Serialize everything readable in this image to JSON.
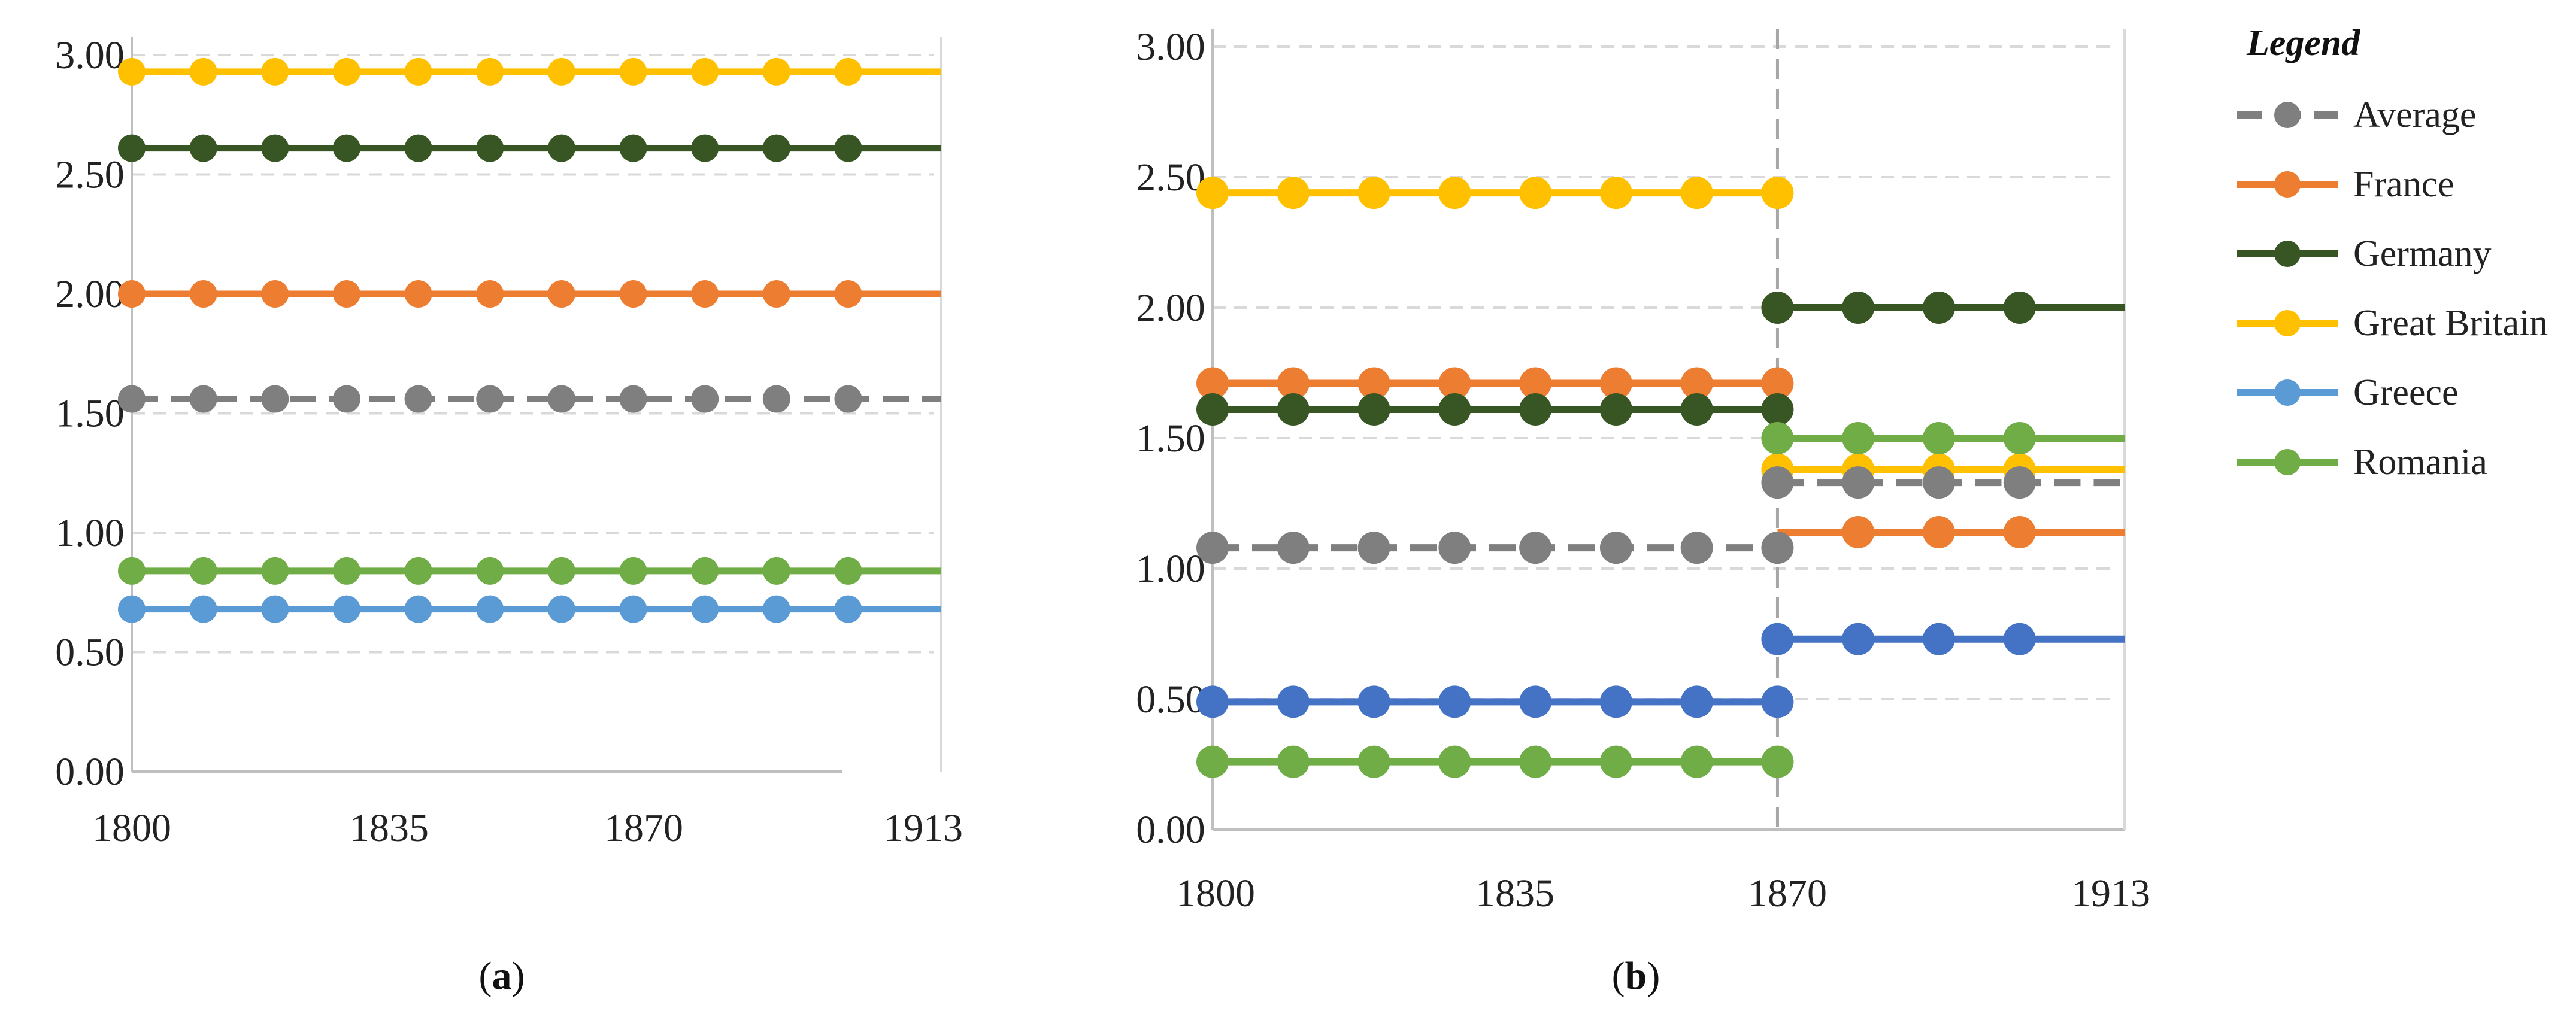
{
  "colors": {
    "Average": "#7f7f7f",
    "France": "#ed7d31",
    "Germany": "#375623",
    "Great Britain": "#ffc000",
    "Greece": "#5b9bd5",
    "Greece_b": "#4472c4",
    "Romania": "#70ad47",
    "grid": "#d9d9d9",
    "axis": "#bfbfbf"
  },
  "legend": {
    "title": "Legend",
    "items": [
      "Average",
      "France",
      "Germany",
      "Great Britain",
      "Greece",
      "Romania"
    ]
  },
  "chart_data": [
    {
      "type": "line",
      "panel": "a",
      "caption": {
        "open": "(",
        "letter": "a",
        "close": ")"
      },
      "xlim": [
        1800,
        1913
      ],
      "ylim": [
        0,
        3
      ],
      "x_ticks": [
        "1800",
        "1835",
        "1870",
        "1913"
      ],
      "x_tick_values": [
        1800,
        1835,
        1870,
        1913
      ],
      "y_ticks": [
        "0.00",
        "0.50",
        "1.00",
        "1.50",
        "2.00",
        "2.50",
        "3.00"
      ],
      "y_tick_values": [
        0,
        0.5,
        1,
        1.5,
        2,
        2.5,
        3
      ],
      "grid": "horizontal dashed",
      "marker_x": [
        1800,
        1810,
        1820,
        1830,
        1840,
        1850,
        1860,
        1870,
        1880,
        1890,
        1900
      ],
      "series": [
        {
          "name": "Great Britain",
          "segments": [
            {
              "x0": 1800,
              "x1": 1913,
              "value": 2.93
            }
          ]
        },
        {
          "name": "Germany",
          "segments": [
            {
              "x0": 1800,
              "x1": 1913,
              "value": 2.61
            }
          ]
        },
        {
          "name": "France",
          "segments": [
            {
              "x0": 1800,
              "x1": 1913,
              "value": 2.0
            }
          ]
        },
        {
          "name": "Average",
          "dashed": true,
          "segments": [
            {
              "x0": 1800,
              "x1": 1913,
              "value": 1.56
            }
          ]
        },
        {
          "name": "Romania",
          "segments": [
            {
              "x0": 1800,
              "x1": 1913,
              "value": 0.84
            }
          ]
        },
        {
          "name": "Greece",
          "segments": [
            {
              "x0": 1800,
              "x1": 1913,
              "value": 0.68
            }
          ]
        }
      ]
    },
    {
      "type": "line",
      "panel": "b",
      "caption": {
        "open": "(",
        "letter": "b",
        "close": ")"
      },
      "xlim": [
        1800,
        1913
      ],
      "ylim": [
        0,
        3
      ],
      "x_ticks": [
        "1800",
        "1835",
        "1870",
        "1913"
      ],
      "x_tick_values": [
        1800,
        1835,
        1870,
        1913
      ],
      "y_ticks": [
        "0.00",
        "0.50",
        "1.00",
        "1.50",
        "2.00",
        "2.50",
        "3.00"
      ],
      "y_tick_values": [
        0,
        0.5,
        1,
        1.5,
        2,
        2.5,
        3
      ],
      "grid": "horizontal dashed",
      "break_year": 1870,
      "series": [
        {
          "name": "Great Britain",
          "segments": [
            {
              "x0": 1800,
              "x1": 1870,
              "value": 2.44,
              "markers": [
                1800,
                1810,
                1820,
                1830,
                1840,
                1850,
                1860,
                1870
              ]
            },
            {
              "x0": 1870,
              "x1": 1913,
              "value": 1.38,
              "markers": [
                1870,
                1880,
                1890,
                1900
              ]
            }
          ]
        },
        {
          "name": "France",
          "segments": [
            {
              "x0": 1800,
              "x1": 1870,
              "value": 1.71,
              "markers": [
                1800,
                1810,
                1820,
                1830,
                1840,
                1850,
                1860,
                1870
              ]
            },
            {
              "x0": 1870,
              "x1": 1913,
              "value": 1.14,
              "markers": [
                1880,
                1890,
                1900
              ]
            }
          ]
        },
        {
          "name": "Germany",
          "segments": [
            {
              "x0": 1800,
              "x1": 1870,
              "value": 1.61,
              "markers": [
                1800,
                1810,
                1820,
                1830,
                1840,
                1850,
                1860,
                1870
              ]
            },
            {
              "x0": 1870,
              "x1": 1913,
              "value": 2.0,
              "markers": [
                1870,
                1880,
                1890,
                1900
              ]
            }
          ]
        },
        {
          "name": "Average",
          "dashed": true,
          "segments": [
            {
              "x0": 1800,
              "x1": 1870,
              "value": 1.08,
              "markers": [
                1800,
                1810,
                1820,
                1830,
                1840,
                1850,
                1860,
                1870
              ]
            },
            {
              "x0": 1870,
              "x1": 1913,
              "value": 1.33,
              "markers": [
                1870,
                1880,
                1890,
                1900
              ]
            }
          ]
        },
        {
          "name": "Greece",
          "colorKey": "Greece_b",
          "segments": [
            {
              "x0": 1800,
              "x1": 1870,
              "value": 0.49,
              "markers": [
                1800,
                1810,
                1820,
                1830,
                1840,
                1850,
                1860,
                1870
              ]
            },
            {
              "x0": 1870,
              "x1": 1913,
              "value": 0.73,
              "markers": [
                1870,
                1880,
                1890,
                1900
              ]
            }
          ]
        },
        {
          "name": "Romania",
          "segments": [
            {
              "x0": 1800,
              "x1": 1870,
              "value": 0.26,
              "markers": [
                1800,
                1810,
                1820,
                1830,
                1840,
                1850,
                1860,
                1870
              ]
            },
            {
              "x0": 1870,
              "x1": 1913,
              "value": 1.5,
              "markers": [
                1870,
                1880,
                1890,
                1900
              ]
            }
          ]
        }
      ]
    }
  ]
}
